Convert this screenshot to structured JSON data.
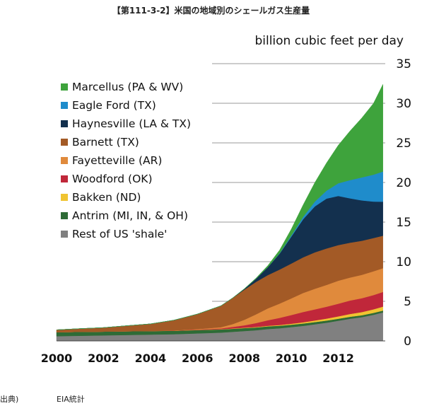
{
  "figure_title": "【第111-3-2】米国の地域別のシェールガス生産量",
  "source_label": "出典)",
  "source_text": "EIA統計",
  "chart_data": {
    "type": "area",
    "stacked": true,
    "title": "",
    "ylabel": "billion cubic feet per day",
    "xlabel": "",
    "ylim": [
      0,
      35
    ],
    "xlim": [
      2000,
      2014
    ],
    "yticks": [
      0,
      5,
      10,
      15,
      20,
      25,
      30,
      35
    ],
    "xticks": [
      "2000",
      "2002",
      "2004",
      "2006",
      "2008",
      "2010",
      "2012"
    ],
    "grid": "horizontal",
    "legend_position": "top-left",
    "x": [
      2000,
      2001,
      2002,
      2003,
      2004,
      2005,
      2006,
      2007,
      2007.5,
      2008,
      2008.5,
      2009,
      2009.5,
      2010,
      2010.5,
      2011,
      2011.5,
      2012,
      2012.5,
      2013,
      2013.5,
      2013.9
    ],
    "series": [
      {
        "name": "Rest of US 'shale'",
        "color": "#808080",
        "values": [
          0.6,
          0.65,
          0.7,
          0.75,
          0.8,
          0.85,
          0.95,
          1.05,
          1.15,
          1.25,
          1.35,
          1.5,
          1.6,
          1.75,
          1.9,
          2.1,
          2.3,
          2.55,
          2.8,
          3.0,
          3.3,
          3.6
        ]
      },
      {
        "name": "Antrim (MI, IN, & OH)",
        "color": "#2e6b36",
        "values": [
          0.5,
          0.5,
          0.48,
          0.47,
          0.45,
          0.43,
          0.42,
          0.4,
          0.38,
          0.37,
          0.35,
          0.34,
          0.32,
          0.3,
          0.3,
          0.28,
          0.27,
          0.25,
          0.25,
          0.24,
          0.24,
          0.23
        ]
      },
      {
        "name": "Bakken (ND)",
        "color": "#f0c431",
        "values": [
          0.0,
          0.0,
          0.0,
          0.0,
          0.0,
          0.01,
          0.02,
          0.03,
          0.04,
          0.05,
          0.06,
          0.07,
          0.09,
          0.12,
          0.15,
          0.2,
          0.25,
          0.3,
          0.35,
          0.4,
          0.45,
          0.5
        ]
      },
      {
        "name": "Woodford (OK)",
        "color": "#c0273a",
        "values": [
          0.0,
          0.0,
          0.0,
          0.0,
          0.0,
          0.02,
          0.05,
          0.1,
          0.2,
          0.3,
          0.5,
          0.7,
          0.9,
          1.1,
          1.3,
          1.4,
          1.5,
          1.6,
          1.7,
          1.75,
          1.8,
          1.85
        ]
      },
      {
        "name": "Fayetteville (AR)",
        "color": "#e08a3c",
        "values": [
          0.0,
          0.0,
          0.0,
          0.0,
          0.0,
          0.01,
          0.05,
          0.15,
          0.35,
          0.7,
          1.1,
          1.5,
          1.8,
          2.1,
          2.4,
          2.6,
          2.75,
          2.9,
          2.9,
          2.95,
          3.0,
          3.0
        ]
      },
      {
        "name": "Barnett (TX)",
        "color": "#a35a26",
        "values": [
          0.3,
          0.4,
          0.5,
          0.7,
          0.9,
          1.3,
          1.9,
          2.7,
          3.3,
          3.8,
          4.1,
          4.2,
          4.3,
          4.4,
          4.5,
          4.6,
          4.6,
          4.5,
          4.4,
          4.3,
          4.2,
          4.1
        ]
      },
      {
        "name": "Haynesville (LA & TX)",
        "color": "#13304e",
        "values": [
          0.0,
          0.0,
          0.0,
          0.0,
          0.0,
          0.0,
          0.0,
          0.0,
          0.0,
          0.1,
          0.4,
          1.0,
          2.0,
          3.4,
          4.8,
          5.8,
          6.3,
          6.2,
          5.6,
          5.1,
          4.6,
          4.3
        ]
      },
      {
        "name": "Eagle Ford (TX)",
        "color": "#1f8ccb",
        "values": [
          0.0,
          0.0,
          0.0,
          0.0,
          0.0,
          0.0,
          0.0,
          0.0,
          0.0,
          0.0,
          0.0,
          0.0,
          0.05,
          0.15,
          0.3,
          0.6,
          1.0,
          1.6,
          2.3,
          2.9,
          3.4,
          3.8
        ]
      },
      {
        "name": "Marcellus (PA & WV)",
        "color": "#3ea33c",
        "values": [
          0.0,
          0.0,
          0.0,
          0.0,
          0.0,
          0.0,
          0.0,
          0.0,
          0.0,
          0.02,
          0.08,
          0.2,
          0.4,
          0.8,
          1.5,
          2.4,
          3.5,
          4.8,
          6.2,
          7.5,
          9.0,
          11.0
        ]
      }
    ],
    "legend_order": [
      "Marcellus (PA & WV)",
      "Eagle Ford (TX)",
      "Haynesville (LA & TX)",
      "Barnett (TX)",
      "Fayetteville (AR)",
      "Woodford (OK)",
      "Bakken (ND)",
      "Antrim (MI, IN, & OH)",
      "Rest of US 'shale'"
    ]
  }
}
